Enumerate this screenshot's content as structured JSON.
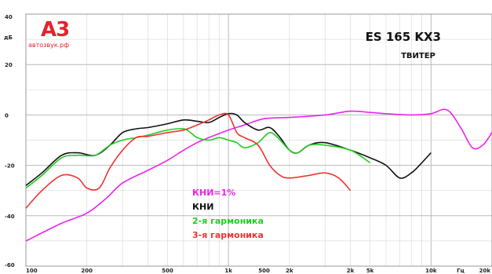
{
  "brand": {
    "logo_text": "A3",
    "site": "автозвук.рф"
  },
  "chart_data": {
    "type": "line",
    "title": "ES 165 KX3",
    "subtitle": "ТВИТЕР",
    "ylabel": "дБ",
    "xlabel": "Гц",
    "x_scale": "log",
    "xlim": [
      100,
      20000
    ],
    "ylim": [
      -60,
      40
    ],
    "grid": true,
    "legend_placement": "center-left",
    "y_ticks": [
      "40",
      "20",
      "0",
      "-20",
      "-40",
      "-60"
    ],
    "x_ticks": [
      "100",
      "200",
      "500",
      "1k",
      "500",
      "2k",
      "2k",
      "5k",
      "10k",
      "Гц",
      "20k"
    ],
    "series": [
      {
        "name": "КНИ=1%",
        "color": "#ee22ee",
        "x": [
          100,
          150,
          200,
          250,
          300,
          400,
          500,
          600,
          700,
          800,
          1000,
          1200,
          1500,
          2000,
          3000,
          4000,
          5000,
          6000,
          8000,
          10000,
          12000,
          14000,
          16000,
          18000,
          20000
        ],
        "y": [
          -50,
          -43,
          -39,
          -33,
          -27,
          -22,
          -18,
          -14,
          -11,
          -9,
          -6,
          -4,
          -1.5,
          -1,
          0,
          1.5,
          1,
          0.5,
          0,
          0.5,
          2,
          -5,
          -13,
          -12,
          -7
        ]
      },
      {
        "name": "КНИ",
        "color": "#111111",
        "x": [
          100,
          120,
          150,
          180,
          220,
          260,
          300,
          350,
          400,
          500,
          600,
          700,
          800,
          900,
          1000,
          1100,
          1200,
          1400,
          1600,
          1800,
          2000,
          2200,
          2500,
          3000,
          4000,
          5000,
          6000,
          7000,
          8000,
          9000,
          10000
        ],
        "y": [
          -28,
          -23,
          -16,
          -15,
          -16,
          -12,
          -7,
          -5.5,
          -5,
          -3.5,
          -2,
          -2.5,
          -3,
          -1,
          0.5,
          0,
          -3,
          -6,
          -5,
          -9,
          -14,
          -15,
          -12,
          -11,
          -14,
          -17,
          -20,
          -25,
          -23,
          -19,
          -15
        ]
      },
      {
        "name": "2-я гармоника",
        "color": "#22cc22",
        "x": [
          100,
          120,
          150,
          180,
          220,
          260,
          300,
          350,
          400,
          500,
          600,
          650,
          700,
          800,
          900,
          1000,
          1100,
          1200,
          1400,
          1600,
          1800,
          2000,
          2200,
          2500,
          3000,
          4000,
          5000
        ],
        "y": [
          -29,
          -24,
          -17,
          -16,
          -16,
          -12,
          -10,
          -9,
          -8,
          -6,
          -5.5,
          -7,
          -9,
          -10,
          -9,
          -10,
          -11,
          -13,
          -11,
          -7,
          -10,
          -14,
          -15,
          -12,
          -12,
          -14,
          -19
        ]
      },
      {
        "name": "3-я гармоника",
        "color": "#ee3333",
        "x": [
          100,
          120,
          150,
          180,
          200,
          230,
          260,
          300,
          350,
          400,
          500,
          600,
          700,
          800,
          900,
          1000,
          1100,
          1200,
          1400,
          1600,
          1800,
          2000,
          2500,
          3000,
          3500,
          4000
        ],
        "y": [
          -37,
          -30,
          -24,
          -25,
          -29,
          -29,
          -21,
          -14,
          -9,
          -8.5,
          -7,
          -6,
          -4,
          -2,
          0,
          0,
          -7,
          -9,
          -12,
          -20,
          -24,
          -25,
          -24,
          -23,
          -25,
          -30
        ]
      }
    ]
  }
}
